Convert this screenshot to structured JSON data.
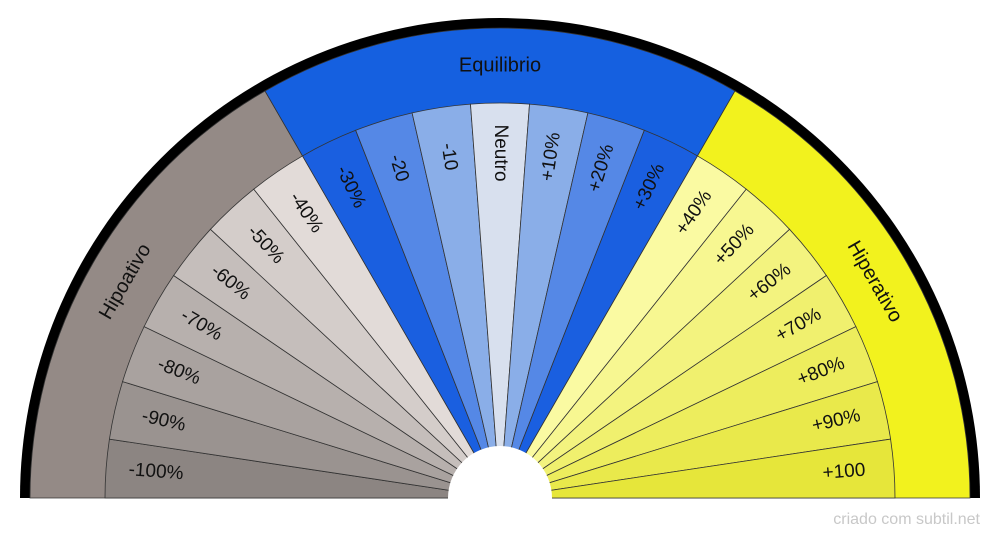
{
  "bands": [
    {
      "label": "Hipoativo"
    },
    {
      "label": "Equilibrio"
    },
    {
      "label": "Hiperativo"
    }
  ],
  "sectors": [
    "-100%",
    "-90%",
    "-80%",
    "-70%",
    "-60%",
    "-50%",
    "-40%",
    "-30%",
    "-20",
    "-10",
    "Neutro",
    "+10%",
    "+20%",
    "+30%",
    "+40%",
    "+50%",
    "+60%",
    "+70%",
    "+80%",
    "+90%",
    "+100"
  ],
  "footer": "criado com subtil.net"
}
